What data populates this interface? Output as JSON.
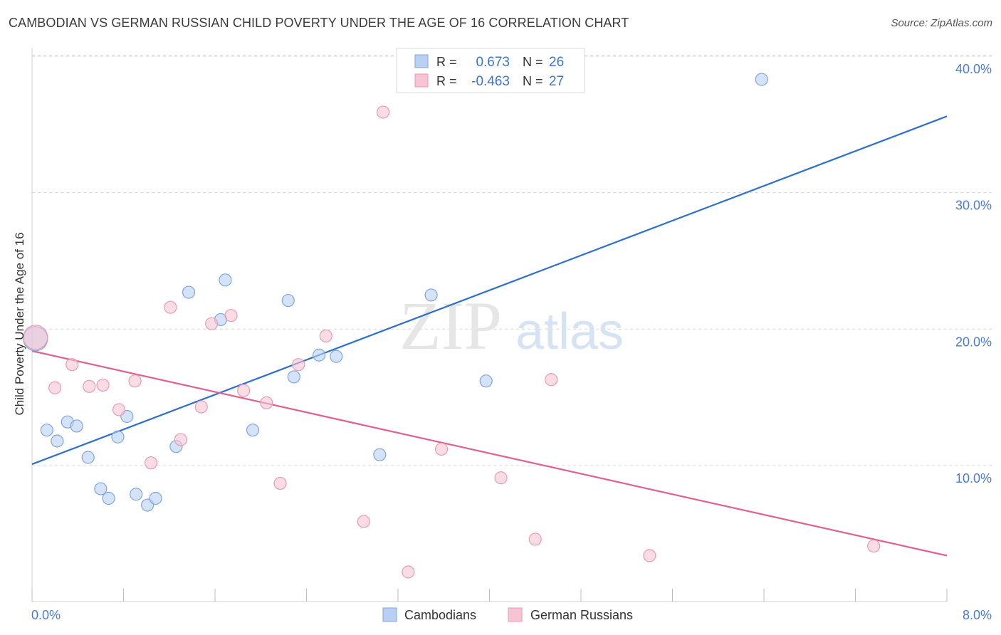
{
  "title": "CAMBODIAN VS GERMAN RUSSIAN CHILD POVERTY UNDER THE AGE OF 16 CORRELATION CHART",
  "source": "Source: ZipAtlas.com",
  "watermark": {
    "zip": "ZIP",
    "atlas": "atlas"
  },
  "colors": {
    "cambodians_fill": "#b9d0f3",
    "cambodians_stroke": "#7ea6e0",
    "cambodians_line": "#2c6fd1",
    "german_fill": "#f7c4d4",
    "german_stroke": "#ea9ab3",
    "german_line": "#e0608e",
    "axis_text": "#4a7ccf",
    "grid": "#d9d9d9"
  },
  "chart_data": {
    "type": "scatter",
    "title": "CAMBODIAN VS GERMAN RUSSIAN CHILD POVERTY UNDER THE AGE OF 16 CORRELATION CHART",
    "xlabel": "",
    "ylabel": "Child Poverty Under the Age of 16",
    "xlim": [
      0,
      8
    ],
    "ylim": [
      0,
      41
    ],
    "x_tick_labels": [
      "0.0%",
      "8.0%"
    ],
    "y_ticks": [
      10,
      20,
      30,
      40
    ],
    "y_tick_labels": [
      "10.0%",
      "20.0%",
      "30.0%",
      "40.0%"
    ],
    "legend": {
      "position": "top-center",
      "entries": [
        {
          "r_label": "R =",
          "r_value": "0.673",
          "n_label": "N =",
          "n_value": "26"
        },
        {
          "r_label": "R =",
          "r_value": "-0.463",
          "n_label": "N =",
          "n_value": "27"
        }
      ]
    },
    "bottom_legend": [
      "Cambodians",
      "German Russians"
    ],
    "series": [
      {
        "name": "Cambodians",
        "points": [
          [
            0.03,
            19.3
          ],
          [
            0.13,
            12.6
          ],
          [
            0.22,
            11.8
          ],
          [
            0.31,
            13.2
          ],
          [
            0.39,
            12.9
          ],
          [
            0.49,
            10.6
          ],
          [
            0.6,
            8.3
          ],
          [
            0.67,
            7.6
          ],
          [
            0.75,
            12.1
          ],
          [
            0.83,
            13.6
          ],
          [
            0.91,
            7.9
          ],
          [
            1.01,
            7.1
          ],
          [
            1.08,
            7.6
          ],
          [
            1.26,
            11.4
          ],
          [
            1.37,
            22.7
          ],
          [
            1.65,
            20.7
          ],
          [
            1.69,
            23.6
          ],
          [
            1.93,
            12.6
          ],
          [
            2.24,
            22.1
          ],
          [
            2.29,
            16.5
          ],
          [
            2.51,
            18.1
          ],
          [
            2.66,
            18.0
          ],
          [
            3.04,
            10.8
          ],
          [
            3.49,
            22.5
          ],
          [
            3.97,
            16.2
          ],
          [
            6.38,
            38.3
          ]
        ],
        "trend": {
          "x": [
            0,
            8
          ],
          "y": [
            10.1,
            35.6
          ]
        }
      },
      {
        "name": "German Russians",
        "points": [
          [
            0.03,
            19.4
          ],
          [
            0.2,
            15.7
          ],
          [
            0.35,
            17.4
          ],
          [
            0.5,
            15.8
          ],
          [
            0.62,
            15.9
          ],
          [
            0.76,
            14.1
          ],
          [
            0.9,
            16.2
          ],
          [
            1.04,
            10.2
          ],
          [
            1.21,
            21.6
          ],
          [
            1.3,
            11.9
          ],
          [
            1.48,
            14.3
          ],
          [
            1.57,
            20.4
          ],
          [
            1.74,
            21.0
          ],
          [
            1.85,
            15.5
          ],
          [
            2.05,
            14.6
          ],
          [
            2.17,
            8.7
          ],
          [
            2.33,
            17.4
          ],
          [
            2.57,
            19.5
          ],
          [
            2.9,
            5.9
          ],
          [
            3.07,
            35.9
          ],
          [
            3.29,
            2.2
          ],
          [
            3.58,
            11.2
          ],
          [
            4.1,
            9.1
          ],
          [
            4.4,
            4.6
          ],
          [
            4.54,
            16.3
          ],
          [
            5.4,
            3.4
          ],
          [
            7.36,
            4.1
          ]
        ],
        "trend": {
          "x": [
            0,
            8
          ],
          "y": [
            18.4,
            3.4
          ]
        }
      }
    ]
  }
}
